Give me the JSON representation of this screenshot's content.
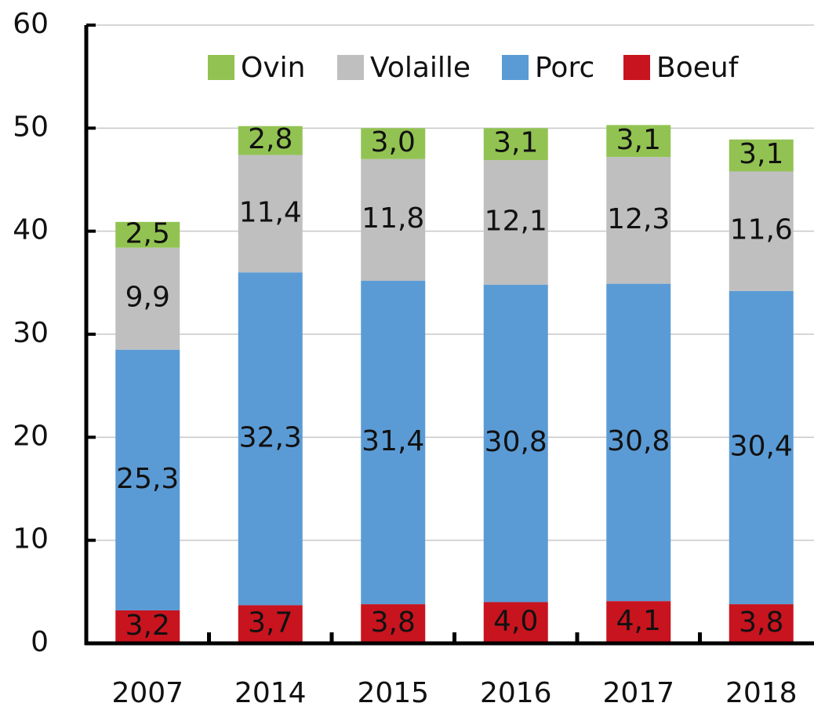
{
  "chart_data": {
    "type": "stacked_bar",
    "categories": [
      "2007",
      "2014",
      "2015",
      "2016",
      "2017",
      "2018"
    ],
    "series": [
      {
        "name": "Ovin",
        "color": "#92c352",
        "values": [
          2.5,
          2.8,
          3.0,
          3.1,
          3.1,
          3.1
        ],
        "value_labels": [
          "2,5",
          "2,8",
          "3,0",
          "3,1",
          "3,1",
          "3,1"
        ]
      },
      {
        "name": "Volaille",
        "color": "#bfbfbf",
        "values": [
          9.9,
          11.4,
          11.8,
          12.1,
          12.3,
          11.6
        ],
        "value_labels": [
          "9,9",
          "11,4",
          "11,8",
          "12,1",
          "12,3",
          "11,6"
        ]
      },
      {
        "name": "Porc",
        "color": "#5b9bd5",
        "values": [
          25.3,
          32.3,
          31.4,
          30.8,
          30.8,
          30.4
        ],
        "value_labels": [
          "25,3",
          "32,3",
          "31,4",
          "30,8",
          "30,8",
          "30,4"
        ]
      },
      {
        "name": "Boeuf",
        "color": "#c8141e",
        "values": [
          3.2,
          3.7,
          3.8,
          4.0,
          4.1,
          3.8
        ],
        "value_labels": [
          "3,2",
          "3,7",
          "3,8",
          "4,0",
          "4,1",
          "3,8"
        ]
      }
    ],
    "ylim": [
      0,
      60
    ],
    "yticks": [
      0,
      10,
      20,
      30,
      40,
      50,
      60
    ],
    "grid": true,
    "legend": "top"
  }
}
